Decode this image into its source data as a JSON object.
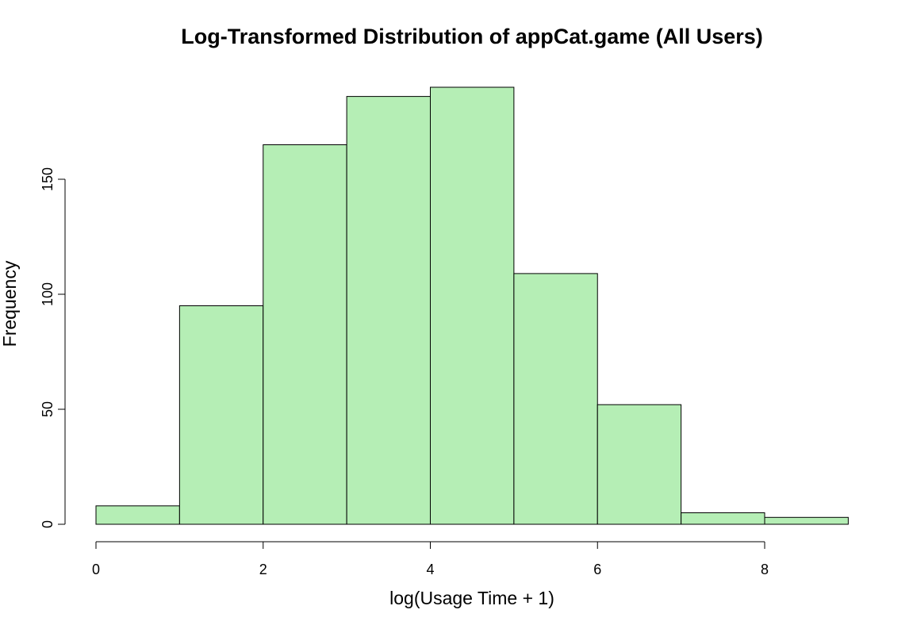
{
  "chart_data": {
    "type": "bar",
    "title": "Log-Transformed Distribution of appCat.game (All Users)",
    "xlabel": "log(Usage Time + 1)",
    "ylabel": "Frequency",
    "bin_edges": [
      0,
      1,
      2,
      3,
      4,
      5,
      6,
      7,
      8,
      9
    ],
    "values": [
      8,
      95,
      165,
      186,
      190,
      109,
      52,
      5,
      3
    ],
    "xlim": [
      0,
      9
    ],
    "ylim": [
      0,
      190
    ],
    "x_ticks": [
      0,
      2,
      4,
      6,
      8
    ],
    "y_ticks": [
      0,
      50,
      100,
      150
    ],
    "bar_color": "#b5eeb5",
    "grid": false,
    "legend": "none"
  }
}
